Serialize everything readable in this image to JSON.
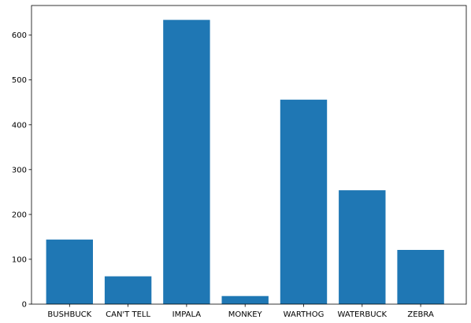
{
  "colors": {
    "bar": "#1f77b4",
    "axis": "#000000",
    "background": "#ffffff"
  },
  "chart_data": {
    "type": "bar",
    "categories": [
      "BUSHBUCK",
      "CAN'T TELL",
      "IMPALA",
      "MONKEY",
      "WARTHOG",
      "WATERBUCK",
      "ZEBRA"
    ],
    "values": [
      144,
      62,
      634,
      18,
      456,
      254,
      121
    ],
    "yticks": [
      0,
      100,
      200,
      300,
      400,
      500,
      600
    ],
    "ylim": [
      0,
      666
    ],
    "grid": false,
    "legend": false
  }
}
